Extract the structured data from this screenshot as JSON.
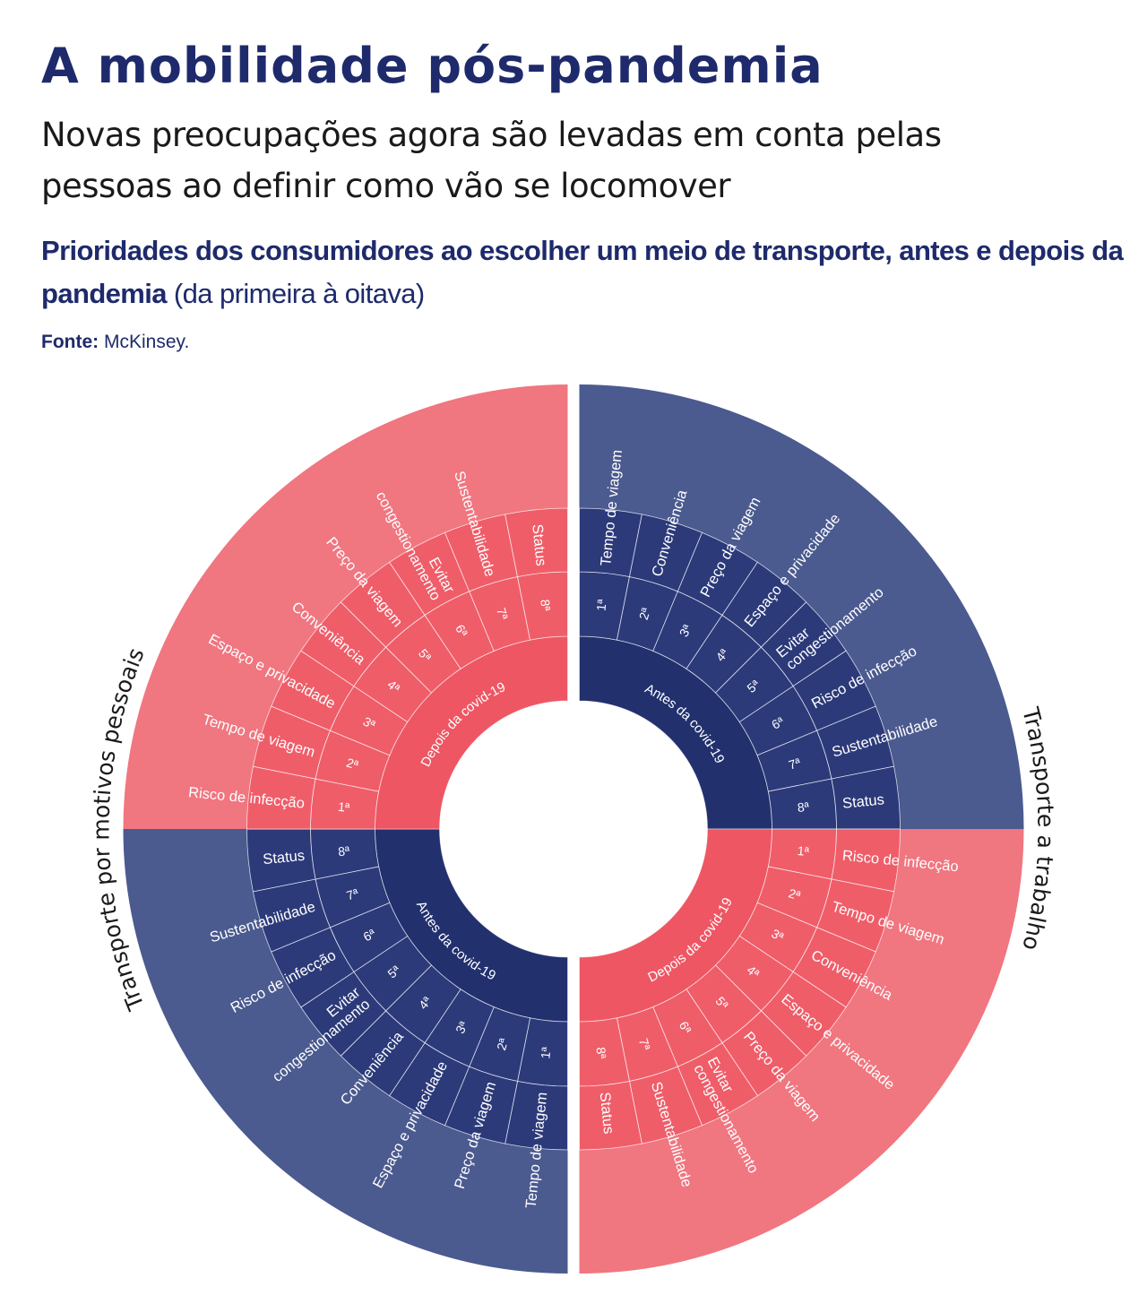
{
  "header": {
    "title": "A mobilidade pós-pandemia",
    "subtitle": "Novas preocupações agora são levadas em conta pelas pessoas ao definir como vão se locomover",
    "chart_heading_bold": "Prioridades dos consumidores ao escolher um meio de transporte, antes e depois da pandemia",
    "chart_heading_light": " (da primeira à oitava)",
    "source_label": "Fonte:",
    "source_value": " McKinsey."
  },
  "colors": {
    "navy_outer": "#4b5a8f",
    "navy_mid": "#2c3a7a",
    "navy_inner": "#22306e",
    "pink_outer": "#f07680",
    "pink_mid": "#ef5d69",
    "pink_inner": "#ee5663",
    "divider": "#ffffff"
  },
  "chart_data": {
    "type": "sunburst",
    "title": "Prioridades dos consumidores ao escolher um meio de transporte, antes e depois da pandemia",
    "rank_labels": [
      "1ª",
      "2ª",
      "3ª",
      "4ª",
      "5ª",
      "6ª",
      "7ª",
      "8ª"
    ],
    "groups": [
      {
        "name": "Transporte a trabalho",
        "side": "right",
        "periods": [
          {
            "name": "Antes da covid-19",
            "position": "top-right",
            "palette": "navy",
            "priorities": [
              "Tempo de viagem",
              "Conveniência",
              "Preço da viagem",
              "Espaço e privacidade",
              "Evitar congestionamento",
              "Risco de infecção",
              "Sustentabilidade",
              "Status"
            ]
          },
          {
            "name": "Depois da covid-19",
            "position": "bottom-right",
            "palette": "pink",
            "priorities": [
              "Risco de infecção",
              "Tempo de viagem",
              "Conveniência",
              "Espaço e privacidade",
              "Preço da viagem",
              "Evitar congestionamento",
              "Sustentabilidade",
              "Status"
            ]
          }
        ]
      },
      {
        "name": "Transporte por motivos pessoais",
        "side": "left",
        "periods": [
          {
            "name": "Antes da covid-19",
            "position": "bottom-left",
            "palette": "navy",
            "priorities": [
              "Tempo de viagem",
              "Preço da viagem",
              "Espaço e privacidade",
              "Conveniência",
              "Evitar congestionamento",
              "Risco de infecção",
              "Sustentabilidade",
              "Status"
            ]
          },
          {
            "name": "Depois da covid-19",
            "position": "top-left",
            "palette": "pink",
            "priorities": [
              "Risco de infecção",
              "Tempo de viagem",
              "Espaço e privacidade",
              "Conveniência",
              "Preço da viagem",
              "Evitar congestionamento",
              "Sustentabilidade",
              "Status"
            ]
          }
        ]
      }
    ]
  }
}
